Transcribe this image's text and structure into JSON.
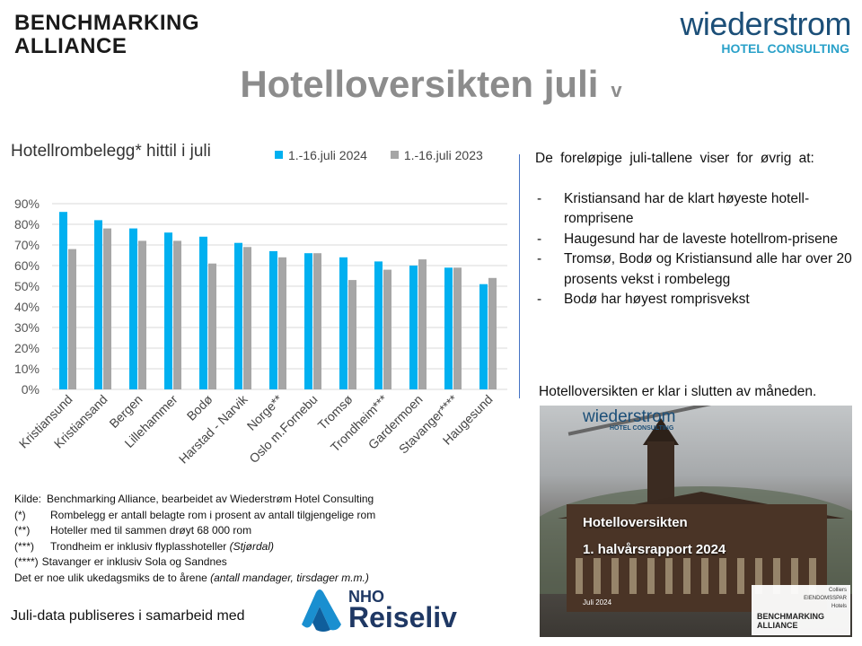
{
  "logos": {
    "benchmarking_line1": "BENCHMARKING",
    "benchmarking_line2": "ALLIANCE",
    "wiederstrom_name": "wiederstrom",
    "wiederstrom_sub": "HOTEL CONSULTING"
  },
  "title": "Hotelloversikten juli",
  "title_suffix": "v",
  "chart_title": "Hotellrombelegg* hittil i juli",
  "colors": {
    "series_2024": "#00b0f0",
    "series_2023": "#a6a6a6",
    "grid": "#d9d9d9",
    "divider": "#4472c4"
  },
  "chart_data": {
    "type": "bar",
    "title": "Hotellrombelegg* hittil i juli",
    "categories": [
      "Kristiansund",
      "Kristiansand",
      "Bergen",
      "Lillehammer",
      "Bodø",
      "Harstad - Narvik",
      "Norge**",
      "Oslo m.Fornebu",
      "Tromsø",
      "Trondheim***",
      "Gardermoen",
      "Stavanger****",
      "Haugesund"
    ],
    "series": [
      {
        "name": "1.-16.juli 2024",
        "values": [
          86,
          82,
          78,
          76,
          74,
          71,
          67,
          66,
          64,
          62,
          60,
          59,
          51
        ]
      },
      {
        "name": "1.-16.juli 2023",
        "values": [
          68,
          78,
          72,
          72,
          61,
          69,
          64,
          66,
          53,
          58,
          63,
          59,
          54
        ]
      }
    ],
    "yticks": [
      "0%",
      "10%",
      "20%",
      "30%",
      "40%",
      "50%",
      "60%",
      "70%",
      "80%",
      "90%"
    ],
    "ylim": [
      0,
      90
    ],
    "grid": true,
    "legend_position": "top"
  },
  "right": {
    "intro": "De foreløpige juli-tallene viser for øvrig at:",
    "bullets": [
      "Kristiansand har de klart høyeste hotell-romprisene",
      "Haugesund har de laveste hotellrom-prisene",
      "Tromsø, Bodø og Kristiansund alle har over 20 prosents vekst i rombelegg",
      "Bodø har høyest romprisvekst"
    ],
    "report_caption": "Hotelloversikten er klar i slutten av måneden."
  },
  "cover": {
    "brand": "wiederstrom",
    "brand_sub": "HOTEL CONSULTING",
    "title1": "Hotelloversikten",
    "title2": "1. halvårsrapport 2024",
    "date": "Juli 2024",
    "partner": "BENCHMARKING ALLIANCE",
    "partner_small": "Colliers\nEIENDOMSSPAR\nHotels"
  },
  "notes": {
    "source_key": "Kilde:",
    "source": "Benchmarking Alliance, bearbeidet av Wiederstrøm Hotel Consulting",
    "n1_key": "(*)",
    "n1": "Rombelegg er antall belagte rom i prosent av antall tilgjengelige rom",
    "n2_key": "(**)",
    "n2": "Hoteller med til sammen drøyt 68 000 rom",
    "n3_key": "(***)",
    "n3": "Trondheim er inklusiv flyplasshoteller",
    "n3_italic": "(Stjørdal)",
    "n4_key": "(****)",
    "n4": "Stavanger er inklusiv Sola og Sandnes",
    "n5": "Det er noe ulik ukedagsmiks de to årene",
    "n5_italic": "(antall mandager, tirsdager m.m.)"
  },
  "publish_text": "Juli-data publiseres i samarbeid med",
  "nho": {
    "line1": "NHO",
    "line2": "Reiseliv"
  }
}
